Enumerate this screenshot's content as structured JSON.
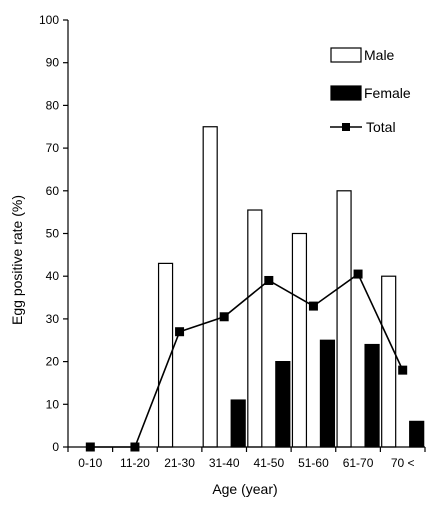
{
  "chart_data": {
    "type": "bar",
    "categories": [
      "0-10",
      "11-20",
      "21-30",
      "31-40",
      "41-50",
      "51-60",
      "61-70",
      "70 <"
    ],
    "series": [
      {
        "name": "Male",
        "kind": "bar",
        "fill": "#ffffff",
        "stroke": "#000000",
        "values": [
          0,
          0,
          43,
          75,
          55.5,
          50,
          60,
          40
        ]
      },
      {
        "name": "Female",
        "kind": "bar",
        "fill": "#000000",
        "stroke": "#000000",
        "values": [
          0,
          0,
          0,
          11,
          20,
          25,
          24,
          6
        ]
      },
      {
        "name": "Total",
        "kind": "line",
        "marker": "square",
        "color": "#000000",
        "values": [
          0,
          0,
          27,
          30.5,
          39,
          33,
          40.5,
          18
        ]
      }
    ],
    "title": "",
    "xlabel": "Age (year)",
    "ylabel": "Egg positive rate (%)",
    "ylim": [
      0,
      100
    ],
    "yticks": [
      0,
      10,
      20,
      30,
      40,
      50,
      60,
      70,
      80,
      90,
      100
    ],
    "grid": false,
    "legend_position": "top-right"
  }
}
